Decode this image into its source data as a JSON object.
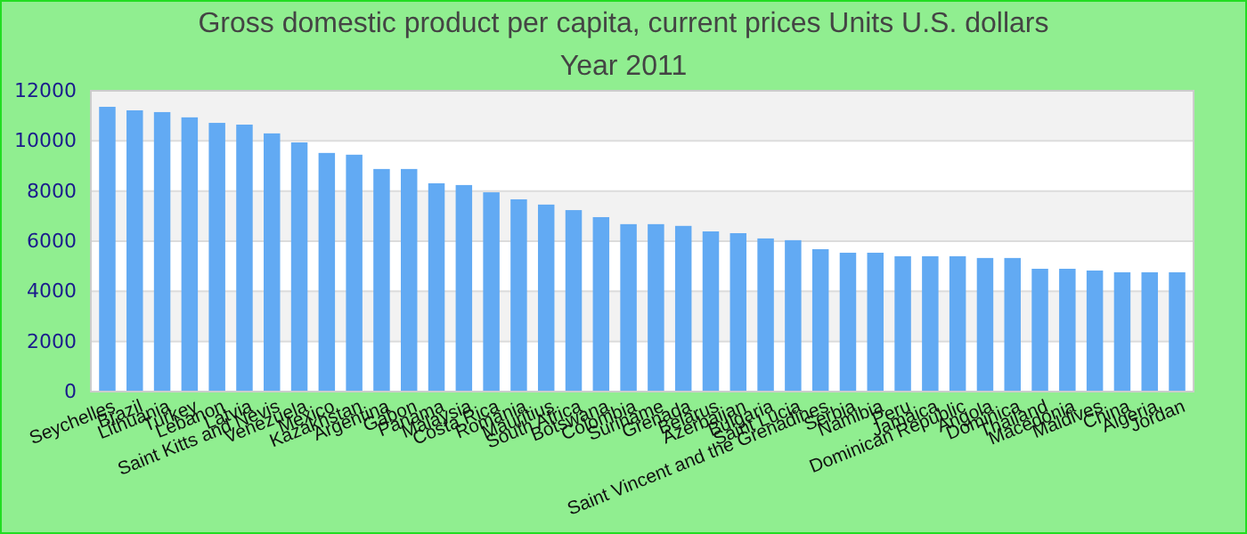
{
  "chart_data": {
    "type": "bar",
    "title": "Gross domestic product per capita, current prices Units U.S. dollars",
    "subtitle": "Year 2011",
    "categories": [
      "Seychelles",
      "Brazil",
      "Lithuania",
      "Turkey",
      "Lebanon",
      "Latvia",
      "Saint Kitts and Nevis",
      "Venezuela",
      "Mexico",
      "Kazakhstan",
      "Argentina",
      "Gabon",
      "Panama",
      "Malaysia",
      "Costa Rica",
      "Romania",
      "Mauritius",
      "South Africa",
      "Botswana",
      "Colombia",
      "Suriname",
      "Grenada",
      "Belarus",
      "Azerbaijan",
      "Bulgaria",
      "Saint Lucia",
      "Saint Vincent and the Grenadines",
      "Serbia",
      "Namibia",
      "Peru",
      "Jamaica",
      "Dominican Republic",
      "Angola",
      "Dominica",
      "Thailand",
      "Macedonia",
      "Maldives",
      "China",
      "Algeria",
      "Jordan"
    ],
    "values": [
      11360,
      11220,
      11150,
      10940,
      10720,
      10650,
      10300,
      9940,
      9520,
      9450,
      8880,
      8880,
      8310,
      8240,
      7950,
      7670,
      7460,
      7240,
      6960,
      6680,
      6680,
      6610,
      6390,
      6320,
      6110,
      6040,
      5680,
      5540,
      5540,
      5400,
      5400,
      5400,
      5330,
      5330,
      4900,
      4900,
      4830,
      4760,
      4760,
      4760
    ],
    "color": "#62aaf3",
    "ylim": [
      0,
      12000
    ],
    "yticks": [
      0,
      2000,
      4000,
      6000,
      8000,
      10000,
      12000
    ],
    "grid": "y"
  }
}
